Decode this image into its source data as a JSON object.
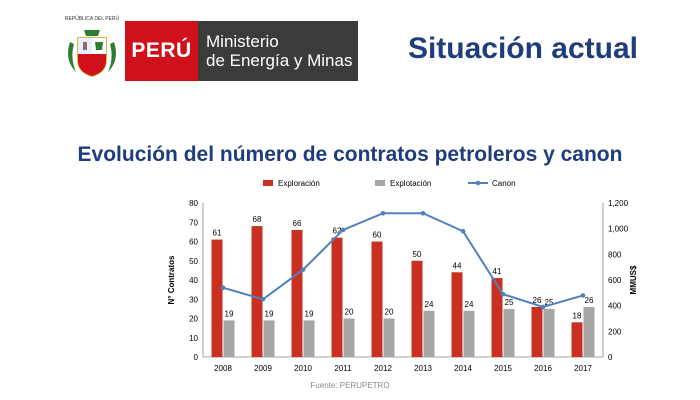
{
  "header": {
    "seal_text": "REPÚBLICA DEL PERÚ",
    "peru_label": "PERÚ",
    "ministry_line1": "Ministerio",
    "ministry_line2": "de Energía y Minas",
    "page_title": "Situación actual"
  },
  "colors": {
    "exploracion": "#c9301f",
    "explotacion": "#a6a6a6",
    "canon": "#4f81bd",
    "brand_red": "#d0101a",
    "title_blue": "#1f3d7a"
  },
  "chart_data": {
    "type": "bar",
    "title": "Evolución del número de contratos petroleros y canon",
    "categories": [
      "2008",
      "2009",
      "2010",
      "2011",
      "2012",
      "2013",
      "2014",
      "2015",
      "2016",
      "2017"
    ],
    "series": [
      {
        "name": "Exploración",
        "type": "bar",
        "axis": "left",
        "values": [
          61,
          68,
          66,
          62,
          60,
          50,
          44,
          41,
          26,
          18
        ]
      },
      {
        "name": "Explotación",
        "type": "bar",
        "axis": "left",
        "values": [
          19,
          19,
          19,
          20,
          20,
          24,
          24,
          25,
          25,
          26
        ]
      },
      {
        "name": "Canon",
        "type": "line",
        "axis": "right",
        "values": [
          540,
          450,
          680,
          990,
          1120,
          1120,
          980,
          490,
          390,
          480
        ]
      }
    ],
    "ylabel": "N° Contratos",
    "ylabel_right": "MMUS$",
    "ylim": [
      0,
      80
    ],
    "ylim_right": [
      0,
      1200
    ],
    "yticks": [
      "0",
      "10",
      "20",
      "30",
      "40",
      "50",
      "60",
      "70",
      "80"
    ],
    "yticks_right": [
      "0",
      "200",
      "400",
      "600",
      "800",
      "1,000",
      "1,200"
    ],
    "legend": "top",
    "grid": false
  },
  "source": "Fuente: PERUPETRO"
}
